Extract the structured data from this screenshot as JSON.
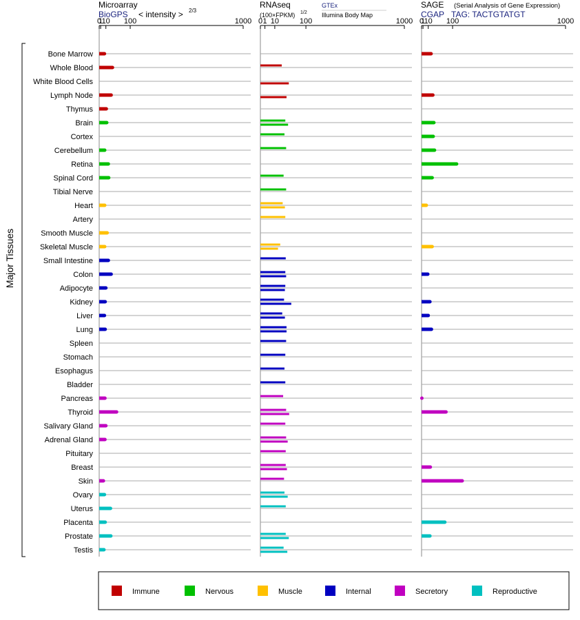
{
  "headers": {
    "microarray": {
      "title": "Microarray",
      "source": "BioGPS",
      "measure": "< intensity >",
      "exponent": "2/3"
    },
    "rnaseq": {
      "title": "RNAseq",
      "measure": "(100×FPKM)",
      "exponent": "1/2",
      "source": "GTEx",
      "source2": "Illumina Body Map"
    },
    "sage": {
      "title": "SAGE",
      "subtitle": "(Serial Analysis of Gene Expression)",
      "source": "CGAP",
      "tag": "TAG: TACTGTATGT"
    }
  },
  "y_axis_label": "Major Tissues",
  "legend": [
    {
      "label": "Immune",
      "color": "#c00000"
    },
    {
      "label": "Nervous",
      "color": "#00c000"
    },
    {
      "label": "Muscle",
      "color": "#ffc000"
    },
    {
      "label": "Internal",
      "color": "#0000c0"
    },
    {
      "label": "Secretory",
      "color": "#c000c0"
    },
    {
      "label": "Reproductive",
      "color": "#00c0c0"
    }
  ],
  "chart_data": [
    {
      "type": "bar",
      "panel": "microarray",
      "x_scale": "power 2/3",
      "xlim": [
        0,
        1000
      ],
      "ticks": [
        0,
        1,
        10,
        100,
        1000
      ],
      "categories": [
        "Bone Marrow",
        "Whole Blood",
        "White Blood Cells",
        "Lymph Node",
        "Thymus",
        "Brain",
        "Cortex",
        "Cerebellum",
        "Retina",
        "Spinal Cord",
        "Tibial Nerve",
        "Heart",
        "Artery",
        "Smooth Muscle",
        "Skeletal Muscle",
        "Small Intestine",
        "Colon",
        "Adipocyte",
        "Kidney",
        "Liver",
        "Lung",
        "Spleen",
        "Stomach",
        "Esophagus",
        "Bladder",
        "Pancreas",
        "Thyroid",
        "Salivary Gland",
        "Adrenal Gland",
        "Pituitary",
        "Breast",
        "Skin",
        "Ovary",
        "Uterus",
        "Placenta",
        "Prostate",
        "Testis"
      ],
      "groups": [
        "Immune",
        "Immune",
        "Immune",
        "Immune",
        "Immune",
        "Nervous",
        "Nervous",
        "Nervous",
        "Nervous",
        "Nervous",
        "Nervous",
        "Muscle",
        "Muscle",
        "Muscle",
        "Muscle",
        "Internal",
        "Internal",
        "Internal",
        "Internal",
        "Internal",
        "Internal",
        "Internal",
        "Internal",
        "Internal",
        "Internal",
        "Secretory",
        "Secretory",
        "Secretory",
        "Secretory",
        "Secretory",
        "Secretory",
        "Secretory",
        "Reproductive",
        "Reproductive",
        "Reproductive",
        "Reproductive",
        "Reproductive"
      ],
      "values": [
        7,
        28,
        null,
        24,
        11,
        12,
        null,
        7.5,
        16,
        17,
        null,
        7.5,
        null,
        13,
        7.5,
        16,
        24,
        10,
        8.5,
        7,
        8.5,
        null,
        null,
        null,
        null,
        8,
        42,
        10,
        8,
        null,
        null,
        5,
        7,
        22,
        8.5,
        23,
        6
      ]
    },
    {
      "type": "bar",
      "panel": "rnaseq",
      "x_scale": "square root",
      "xlim": [
        0,
        1000
      ],
      "ticks": [
        0,
        1,
        10,
        100,
        1000
      ],
      "series": [
        {
          "name": "GTEx",
          "values": [
            null,
            [
              22
            ],
            [
              null
            ],
            null,
            null,
            [
              30
            ],
            [
              28
            ],
            [
              32
            ],
            null,
            [
              26
            ],
            [
              32
            ],
            [
              24
            ],
            [
              30
            ],
            null,
            [
              19
            ],
            [
              31
            ],
            [
              30
            ],
            [
              30
            ],
            [
              27
            ],
            [
              23
            ],
            [
              33
            ],
            [
              32
            ],
            [
              30
            ],
            [
              28
            ],
            [
              30
            ],
            [
              25
            ],
            [
              32
            ],
            [
              30
            ],
            [
              32
            ],
            [
              31
            ],
            [
              31
            ],
            [
              27
            ],
            [
              28
            ],
            [
              31
            ],
            null,
            [
              31
            ],
            [
              26
            ]
          ]
        },
        {
          "name": "Illumina Body Map",
          "values": [
            null,
            null,
            [
              39
            ],
            [
              33
            ],
            null,
            [
              37
            ],
            null,
            null,
            null,
            null,
            null,
            [
              29
            ],
            null,
            null,
            [
              15
            ],
            null,
            [
              32
            ],
            [
              29
            ],
            [
              46
            ],
            [
              29
            ],
            [
              33
            ],
            null,
            null,
            null,
            null,
            null,
            [
              40
            ],
            null,
            [
              36
            ],
            null,
            [
              34
            ],
            null,
            [
              36
            ],
            null,
            null,
            [
              39
            ],
            [
              35
            ]
          ]
        }
      ]
    },
    {
      "type": "bar",
      "panel": "sage",
      "x_scale": "power 2/3",
      "xlim": [
        0,
        1000
      ],
      "ticks": [
        0,
        1,
        10,
        100,
        1000
      ],
      "values": [
        17,
        null,
        null,
        22,
        null,
        25,
        23,
        27,
        120,
        20,
        null,
        6,
        null,
        null,
        20,
        null,
        9,
        null,
        14,
        10,
        18,
        null,
        null,
        null,
        null,
        0.1,
        70,
        null,
        null,
        null,
        15,
        150,
        null,
        null,
        65,
        14,
        null
      ]
    }
  ]
}
